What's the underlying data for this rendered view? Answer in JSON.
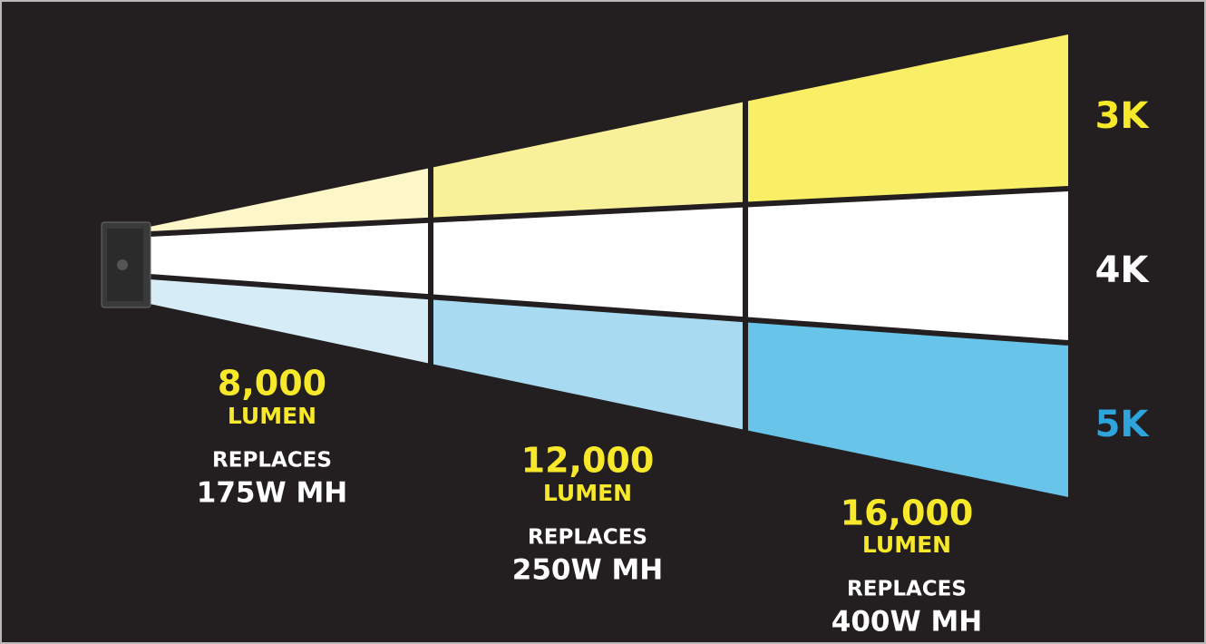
{
  "color_temps": [
    {
      "label": "3K"
    },
    {
      "label": "4K"
    },
    {
      "label": "5K"
    }
  ],
  "tiers": [
    {
      "lumens": "8,000",
      "unit": "LUMEN",
      "replaces": "REPLACES",
      "equivalent": "175W MH"
    },
    {
      "lumens": "12,000",
      "unit": "LUMEN",
      "replaces": "REPLACES",
      "equivalent": "250W MH"
    },
    {
      "lumens": "16,000",
      "unit": "LUMEN",
      "replaces": "REPLACES",
      "equivalent": "400W MH"
    }
  ]
}
